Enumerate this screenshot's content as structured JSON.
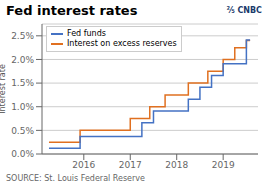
{
  "chart_data": {
    "type": "step",
    "title": "Fed interest rates",
    "y_label": "Interest rate",
    "annotations": [
      "⅖ CNBC",
      "SOURCE: St. Louis Federal Reserve"
    ],
    "x": [
      2015.25,
      2015.58,
      2015.92,
      2016.0,
      2016.25,
      2016.5,
      2016.75,
      2016.92,
      2017.0,
      2017.25,
      2017.42,
      2017.5,
      2017.75,
      2017.92,
      2018.0,
      2018.25,
      2018.5,
      2018.67,
      2018.75,
      2018.92,
      2019.0,
      2019.25,
      2019.5,
      2019.58
    ],
    "series": [
      {
        "name": "Fed funds",
        "color": "#4472C4",
        "values": [
          0.12,
          0.12,
          0.37,
          0.37,
          0.37,
          0.37,
          0.37,
          0.37,
          0.37,
          0.66,
          0.66,
          0.91,
          0.91,
          0.91,
          0.91,
          1.16,
          1.41,
          1.41,
          1.66,
          1.66,
          1.91,
          1.91,
          2.41,
          2.41
        ]
      },
      {
        "name": "Interest on excess reserves",
        "color": "#E07020",
        "values": [
          0.25,
          0.25,
          0.5,
          0.5,
          0.5,
          0.5,
          0.5,
          0.5,
          0.75,
          0.75,
          1.0,
          1.0,
          1.25,
          1.25,
          1.25,
          1.5,
          1.5,
          1.75,
          1.75,
          1.75,
          2.0,
          2.25,
          2.4,
          2.4
        ]
      }
    ],
    "xlim": [
      2015.1,
      2019.75
    ],
    "xticks": [
      2016,
      2017,
      2018,
      2019
    ],
    "ylim": [
      0.0,
      2.75
    ],
    "yticks": [
      {
        "value": 0.0,
        "label": "0.0%"
      },
      {
        "value": 0.5,
        "label": "0.5%"
      },
      {
        "value": 1.0,
        "label": "1.0%"
      },
      {
        "value": 1.5,
        "label": "1.5%"
      },
      {
        "value": 2.0,
        "label": "2.0%"
      },
      {
        "value": 2.5,
        "label": "2.5%"
      }
    ],
    "grid": true,
    "legend": "upper left"
  }
}
